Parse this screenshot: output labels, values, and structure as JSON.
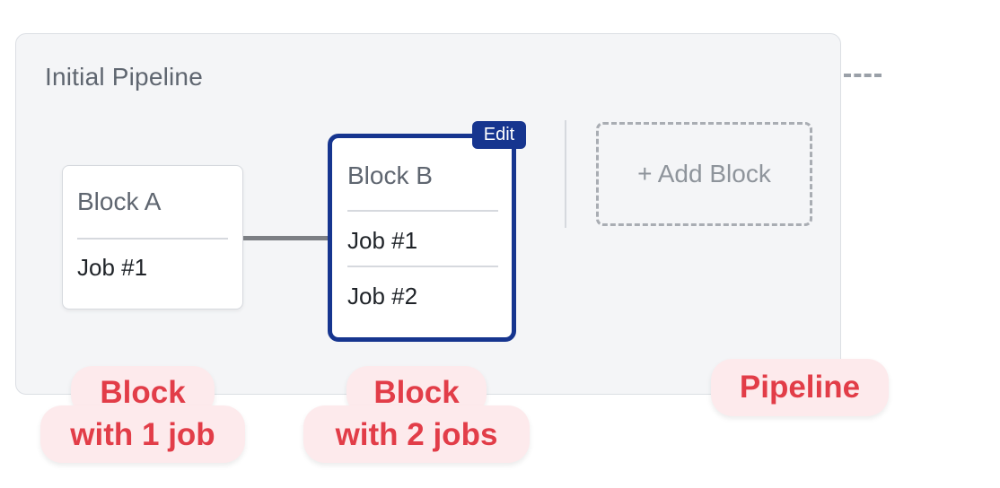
{
  "pipeline": {
    "title": "Initial Pipeline",
    "add_block_label": "+ Add Block",
    "edit_label": "Edit"
  },
  "blocks": [
    {
      "name": "Block A",
      "jobs": [
        "Job #1"
      ]
    },
    {
      "name": "Block B",
      "jobs": [
        "Job #1",
        "Job #2"
      ]
    }
  ],
  "annotations": {
    "block_one": {
      "line1": "Block",
      "line2": "with 1 job"
    },
    "block_two": {
      "line1": "Block",
      "line2": "with 2 jobs"
    },
    "pipeline": "Pipeline"
  },
  "colors": {
    "accent": "#16358f",
    "annotation_text": "#e23d48",
    "annotation_bg": "#fdeaec",
    "pipeline_bg": "#f4f5f7"
  }
}
